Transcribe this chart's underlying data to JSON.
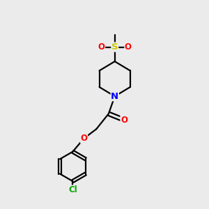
{
  "bg_color": "#ebebeb",
  "line_color": "#000000",
  "bond_width": 1.6,
  "atom_colors": {
    "N": "#0000ff",
    "O": "#ff0000",
    "S": "#cccc00",
    "Cl": "#00aa00",
    "C": "#000000"
  },
  "font_size": 8.5,
  "fig_size": [
    3.0,
    3.0
  ],
  "dpi": 100,
  "xlim": [
    0,
    10
  ],
  "ylim": [
    0,
    10
  ]
}
